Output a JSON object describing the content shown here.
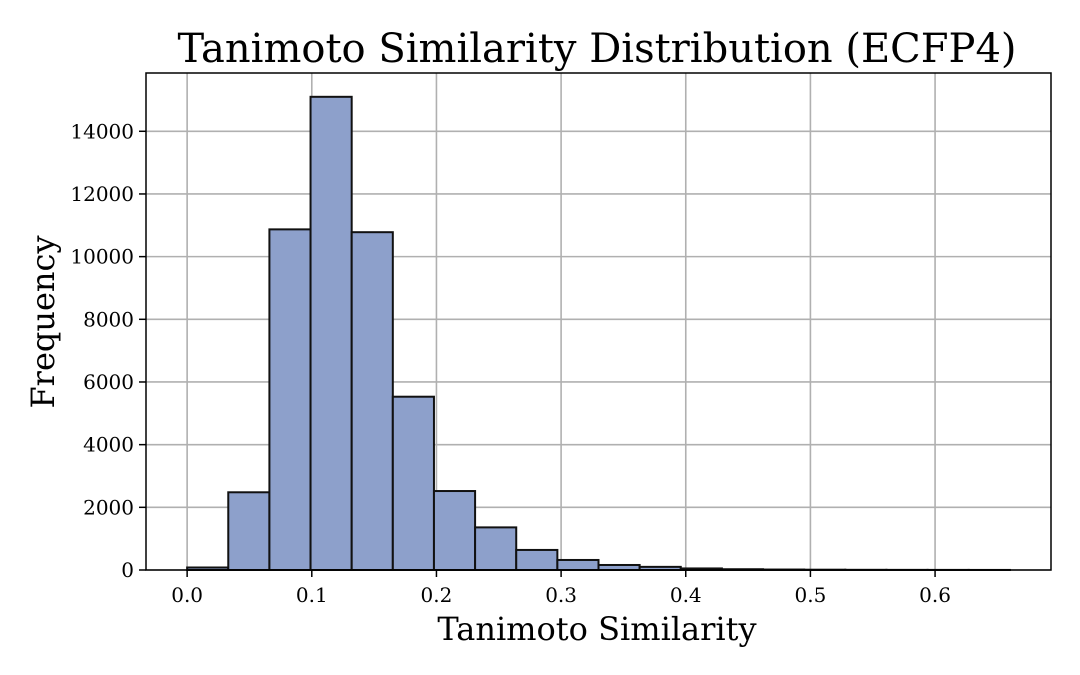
{
  "chart_data": {
    "type": "bar",
    "title": "Tanimoto Similarity Distribution (ECFP4)",
    "xlabel": "Tanimoto Similarity",
    "ylabel": "Frequency",
    "xlim": [
      -0.033,
      0.693
    ],
    "ylim": [
      0,
      15860
    ],
    "xticks": [
      0.0,
      0.1,
      0.2,
      0.3,
      0.4,
      0.5,
      0.6
    ],
    "xtick_labels": [
      "0.0",
      "0.1",
      "0.2",
      "0.3",
      "0.4",
      "0.5",
      "0.6"
    ],
    "yticks": [
      0,
      2000,
      4000,
      6000,
      8000,
      10000,
      12000,
      14000
    ],
    "ytick_labels": [
      "0",
      "2000",
      "4000",
      "6000",
      "8000",
      "10000",
      "12000",
      "14000"
    ],
    "grid": true,
    "bar_color": "#8da0cb",
    "edge_color": "#111111",
    "bins": [
      {
        "x0": 0.0,
        "x1": 0.033,
        "value": 80
      },
      {
        "x0": 0.033,
        "x1": 0.066,
        "value": 2480
      },
      {
        "x0": 0.066,
        "x1": 0.099,
        "value": 10870
      },
      {
        "x0": 0.099,
        "x1": 0.132,
        "value": 15100
      },
      {
        "x0": 0.132,
        "x1": 0.165,
        "value": 10780
      },
      {
        "x0": 0.165,
        "x1": 0.198,
        "value": 5530
      },
      {
        "x0": 0.198,
        "x1": 0.231,
        "value": 2520
      },
      {
        "x0": 0.231,
        "x1": 0.264,
        "value": 1360
      },
      {
        "x0": 0.264,
        "x1": 0.297,
        "value": 640
      },
      {
        "x0": 0.297,
        "x1": 0.33,
        "value": 320
      },
      {
        "x0": 0.33,
        "x1": 0.363,
        "value": 160
      },
      {
        "x0": 0.363,
        "x1": 0.396,
        "value": 100
      },
      {
        "x0": 0.396,
        "x1": 0.429,
        "value": 50
      },
      {
        "x0": 0.429,
        "x1": 0.462,
        "value": 25
      },
      {
        "x0": 0.462,
        "x1": 0.495,
        "value": 15
      },
      {
        "x0": 0.495,
        "x1": 0.528,
        "value": 10
      },
      {
        "x0": 0.528,
        "x1": 0.561,
        "value": 6
      },
      {
        "x0": 0.561,
        "x1": 0.594,
        "value": 4
      },
      {
        "x0": 0.594,
        "x1": 0.627,
        "value": 3
      },
      {
        "x0": 0.627,
        "x1": 0.66,
        "value": 2
      }
    ]
  }
}
